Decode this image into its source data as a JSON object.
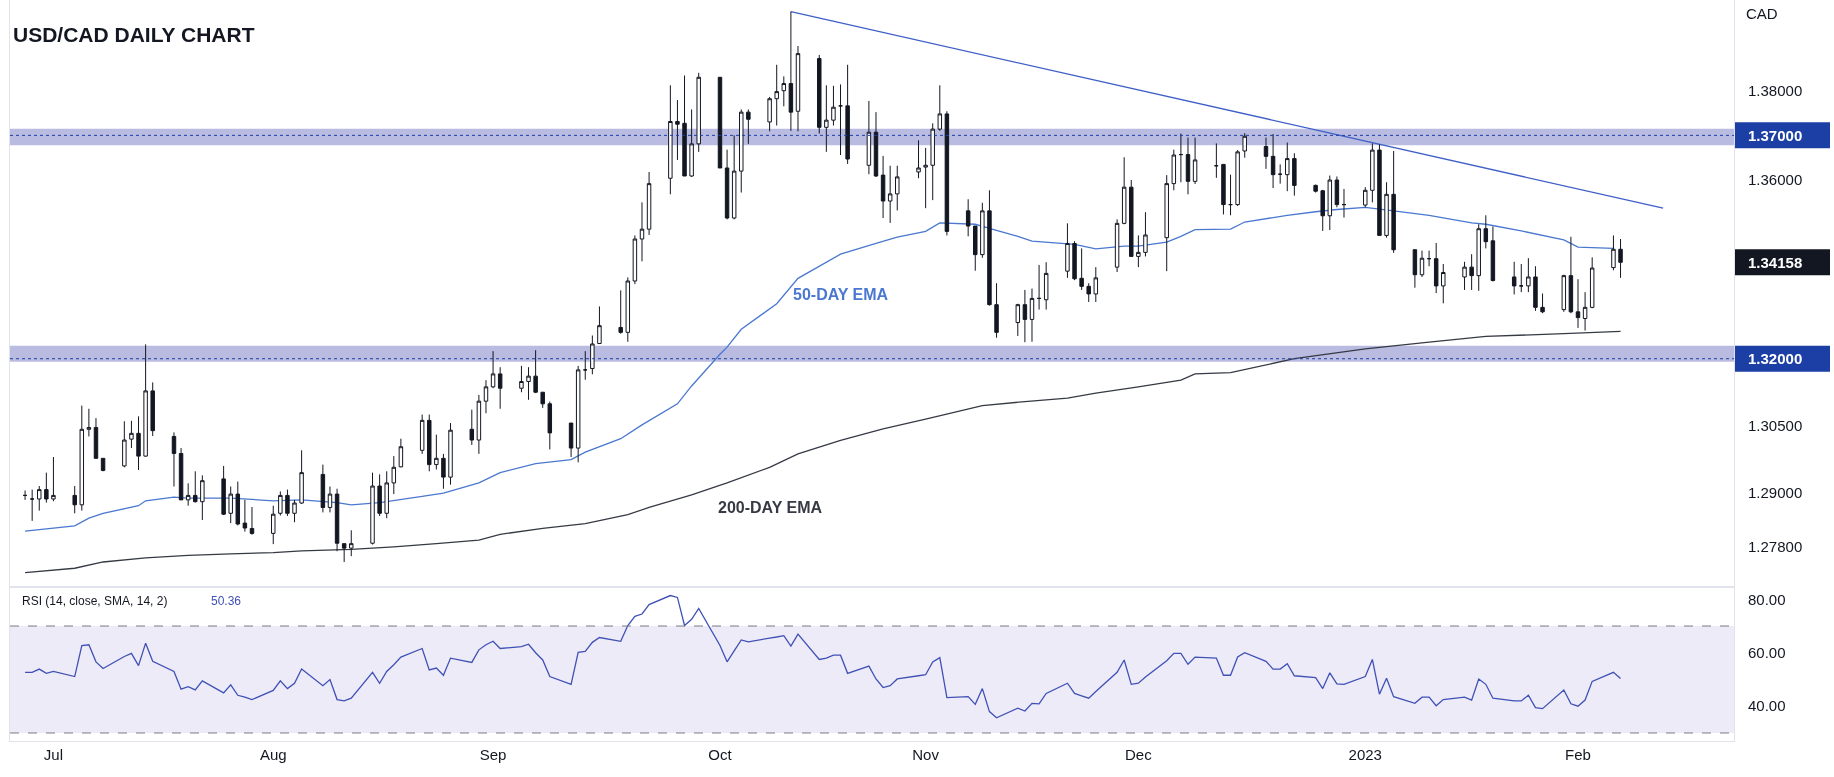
{
  "chart_data": [
    {
      "type": "candlestick",
      "title": "USD/CAD DAILY CHART",
      "ylabel": "CAD",
      "x": [
        "2022-06-27",
        "2022-06-28",
        "2022-06-29",
        "2022-06-30",
        "2022-07-01",
        "2022-07-04",
        "2022-07-05",
        "2022-07-06",
        "2022-07-07",
        "2022-07-08",
        "2022-07-11",
        "2022-07-12",
        "2022-07-13",
        "2022-07-14",
        "2022-07-15",
        "2022-07-18",
        "2022-07-19",
        "2022-07-20",
        "2022-07-21",
        "2022-07-22",
        "2022-07-25",
        "2022-07-26",
        "2022-07-27",
        "2022-07-28",
        "2022-07-29",
        "2022-08-01",
        "2022-08-02",
        "2022-08-03",
        "2022-08-04",
        "2022-08-05",
        "2022-08-08",
        "2022-08-09",
        "2022-08-10",
        "2022-08-11",
        "2022-08-12",
        "2022-08-15",
        "2022-08-16",
        "2022-08-17",
        "2022-08-18",
        "2022-08-19",
        "2022-08-22",
        "2022-08-23",
        "2022-08-24",
        "2022-08-25",
        "2022-08-26",
        "2022-08-29",
        "2022-08-30",
        "2022-08-31",
        "2022-09-01",
        "2022-09-02",
        "2022-09-05",
        "2022-09-06",
        "2022-09-07",
        "2022-09-08",
        "2022-09-09",
        "2022-09-12",
        "2022-09-13",
        "2022-09-14",
        "2022-09-15",
        "2022-09-16",
        "2022-09-19",
        "2022-09-20",
        "2022-09-21",
        "2022-09-22",
        "2022-09-23",
        "2022-09-26",
        "2022-09-27",
        "2022-09-28",
        "2022-09-29",
        "2022-09-30",
        "2022-10-03",
        "2022-10-04",
        "2022-10-05",
        "2022-10-06",
        "2022-10-07",
        "2022-10-10",
        "2022-10-11",
        "2022-10-12",
        "2022-10-13",
        "2022-10-14",
        "2022-10-17",
        "2022-10-18",
        "2022-10-19",
        "2022-10-20",
        "2022-10-21",
        "2022-10-24",
        "2022-10-25",
        "2022-10-26",
        "2022-10-27",
        "2022-10-28",
        "2022-10-31",
        "2022-11-01",
        "2022-11-02",
        "2022-11-03",
        "2022-11-04",
        "2022-11-07",
        "2022-11-08",
        "2022-11-09",
        "2022-11-10",
        "2022-11-11",
        "2022-11-14",
        "2022-11-15",
        "2022-11-16",
        "2022-11-17",
        "2022-11-18",
        "2022-11-21",
        "2022-11-22",
        "2022-11-23",
        "2022-11-24",
        "2022-11-25",
        "2022-11-28",
        "2022-11-29",
        "2022-11-30",
        "2022-12-01",
        "2022-12-02",
        "2022-12-05",
        "2022-12-06",
        "2022-12-07",
        "2022-12-08",
        "2022-12-09",
        "2022-12-12",
        "2022-12-13",
        "2022-12-14",
        "2022-12-15",
        "2022-12-16",
        "2022-12-19",
        "2022-12-20",
        "2022-12-21",
        "2022-12-22",
        "2022-12-23",
        "2022-12-26",
        "2022-12-27",
        "2022-12-28",
        "2022-12-29",
        "2022-12-30",
        "2023-01-02",
        "2023-01-03",
        "2023-01-04",
        "2023-01-05",
        "2023-01-06",
        "2023-01-09",
        "2023-01-10",
        "2023-01-11",
        "2023-01-12",
        "2023-01-13",
        "2023-01-16",
        "2023-01-17",
        "2023-01-18",
        "2023-01-19",
        "2023-01-20",
        "2023-01-23",
        "2023-01-24",
        "2023-01-25",
        "2023-01-26",
        "2023-01-27",
        "2023-01-30",
        "2023-01-31",
        "2023-02-01",
        "2023-02-02",
        "2023-02-03",
        "2023-02-06",
        "2023-02-07"
      ],
      "ohlc": [
        [
          1.2894,
          1.2905,
          1.2884,
          1.2894
        ],
        [
          1.2886,
          1.2907,
          1.2837,
          1.2886
        ],
        [
          1.2886,
          1.2915,
          1.286,
          1.2907
        ],
        [
          1.2907,
          1.2945,
          1.2878,
          1.2886
        ],
        [
          1.2886,
          1.298,
          1.2881,
          1.2894
        ],
        [
          1.2894,
          1.2915,
          1.2854,
          1.2873
        ],
        [
          1.2873,
          1.3095,
          1.286,
          1.3042
        ],
        [
          1.3042,
          1.3088,
          1.3026,
          1.3046
        ],
        [
          1.3046,
          1.3067,
          1.2977,
          1.2977
        ],
        [
          1.2977,
          1.2977,
          1.2948,
          1.295
        ],
        [
          1.296,
          1.306,
          1.2957,
          1.3018
        ],
        [
          1.302,
          1.3061,
          1.3,
          1.3033
        ],
        [
          1.3033,
          1.3071,
          1.2951,
          1.2982
        ],
        [
          1.2982,
          1.3232,
          1.2981,
          1.3128
        ],
        [
          1.3128,
          1.3147,
          1.3027,
          1.3039
        ],
        [
          1.3026,
          1.3035,
          1.2914,
          1.2988
        ],
        [
          1.2988,
          1.3,
          1.2884,
          1.2884
        ],
        [
          1.2884,
          1.2921,
          1.2871,
          1.2894
        ],
        [
          1.2894,
          1.2948,
          1.2878,
          1.288
        ],
        [
          1.288,
          1.2939,
          1.2839,
          1.2927
        ],
        [
          1.2931,
          1.296,
          1.285,
          1.2852
        ],
        [
          1.2854,
          1.2914,
          1.2832,
          1.2897
        ],
        [
          1.2897,
          1.2925,
          1.2827,
          1.283
        ],
        [
          1.2832,
          1.2884,
          1.2813,
          1.2821
        ],
        [
          1.282,
          1.2868,
          1.2806,
          1.2809
        ],
        [
          1.2809,
          1.2871,
          1.2785,
          1.2852
        ],
        [
          1.2854,
          1.2903,
          1.2849,
          1.2894
        ],
        [
          1.2894,
          1.2907,
          1.2848,
          1.2854
        ],
        [
          1.2854,
          1.2884,
          1.2834,
          1.2877
        ],
        [
          1.2877,
          1.2995,
          1.2875,
          1.2945
        ],
        [
          1.2941,
          1.2963,
          1.2856,
          1.2867
        ],
        [
          1.2867,
          1.2914,
          1.2856,
          1.2897
        ],
        [
          1.2897,
          1.2909,
          1.2769,
          1.2787
        ],
        [
          1.2786,
          1.2786,
          1.2745,
          1.2776
        ],
        [
          1.2776,
          1.2816,
          1.2758,
          1.2786
        ],
        [
          1.2787,
          1.2945,
          1.2784,
          1.2915
        ],
        [
          1.2915,
          1.2941,
          1.2848,
          1.2854
        ],
        [
          1.2854,
          1.2948,
          1.2843,
          1.2922
        ],
        [
          1.2922,
          1.2982,
          1.2897,
          1.2957
        ],
        [
          1.2958,
          1.3021,
          1.2957,
          1.3003
        ],
        [
          1.2995,
          1.3075,
          1.2987,
          1.3062
        ],
        [
          1.3062,
          1.3075,
          1.2948,
          1.2963
        ],
        [
          1.2963,
          1.303,
          1.2952,
          1.2977
        ],
        [
          1.2977,
          1.2987,
          1.2909,
          1.2935
        ],
        [
          1.2935,
          1.3056,
          1.2918,
          1.304
        ],
        [
          1.3042,
          1.3086,
          1.3007,
          1.3018
        ],
        [
          1.3018,
          1.3119,
          1.2987,
          1.3105
        ],
        [
          1.3105,
          1.3152,
          1.3078,
          1.3137
        ],
        [
          1.3137,
          1.3217,
          1.3134,
          1.3166
        ],
        [
          1.3166,
          1.3181,
          1.3088,
          1.3134
        ],
        [
          1.3134,
          1.3184,
          1.3125,
          1.3149
        ],
        [
          1.3149,
          1.3181,
          1.3108,
          1.3161
        ],
        [
          1.3161,
          1.3219,
          1.3123,
          1.3125
        ],
        [
          1.3125,
          1.3125,
          1.309,
          1.3099
        ],
        [
          1.3099,
          1.3104,
          1.2997,
          1.3034
        ],
        [
          1.3056,
          1.3056,
          1.298,
          1.3
        ],
        [
          1.3,
          1.3184,
          1.2968,
          1.3175
        ],
        [
          1.3175,
          1.3217,
          1.3153,
          1.3175
        ],
        [
          1.3178,
          1.3252,
          1.3165,
          1.3233
        ],
        [
          1.3234,
          1.3317,
          1.3234,
          1.3274
        ],
        [
          1.327,
          1.3353,
          1.3256,
          1.3259
        ],
        [
          1.3259,
          1.3382,
          1.3238,
          1.3374
        ],
        [
          1.3374,
          1.3476,
          1.3367,
          1.3468
        ],
        [
          1.3468,
          1.355,
          1.3418,
          1.349
        ],
        [
          1.349,
          1.3618,
          1.3477,
          1.3592
        ],
        [
          1.3604,
          1.3812,
          1.3568,
          1.3731
        ],
        [
          1.3731,
          1.3779,
          1.3645,
          1.3725
        ],
        [
          1.3727,
          1.3834,
          1.3609,
          1.3609
        ],
        [
          1.3609,
          1.3758,
          1.3607,
          1.3681
        ],
        [
          1.3681,
          1.384,
          1.3663,
          1.383
        ],
        [
          1.383,
          1.383,
          1.3627,
          1.3627
        ],
        [
          1.3627,
          1.3668,
          1.3512,
          1.3515
        ],
        [
          1.3515,
          1.37,
          1.3512,
          1.362
        ],
        [
          1.362,
          1.3758,
          1.3572,
          1.3752
        ],
        [
          1.3752,
          1.3758,
          1.3681,
          1.3736
        ],
        [
          1.373,
          1.3786,
          1.3709,
          1.3782
        ],
        [
          1.3782,
          1.3858,
          1.3722,
          1.3798
        ],
        [
          1.38,
          1.3832,
          1.3765,
          1.3816
        ],
        [
          1.3816,
          1.3977,
          1.371,
          1.3752
        ],
        [
          1.3754,
          1.39,
          1.3709,
          1.3883
        ],
        [
          1.3872,
          1.388,
          1.3704,
          1.3718
        ],
        [
          1.3718,
          1.3812,
          1.3663,
          1.3734
        ],
        [
          1.3734,
          1.3811,
          1.3722,
          1.3763
        ],
        [
          1.3766,
          1.3814,
          1.3656,
          1.3766
        ],
        [
          1.3766,
          1.3858,
          1.3636,
          1.3647
        ],
        [
          1.3633,
          1.3777,
          1.3613,
          1.3707
        ],
        [
          1.3707,
          1.3752,
          1.3607,
          1.3609
        ],
        [
          1.3611,
          1.3654,
          1.3515,
          1.3553
        ],
        [
          1.3553,
          1.3632,
          1.3504,
          1.3569
        ],
        [
          1.3569,
          1.3632,
          1.3532,
          1.3607
        ],
        [
          1.3618,
          1.3689,
          1.3604,
          1.3627
        ],
        [
          1.3629,
          1.3672,
          1.3537,
          1.3633
        ],
        [
          1.3633,
          1.3727,
          1.3555,
          1.3714
        ],
        [
          1.3714,
          1.3812,
          1.371,
          1.3748
        ],
        [
          1.3748,
          1.3754,
          1.3476,
          1.3485
        ],
        [
          1.3531,
          1.3557,
          1.3474,
          1.3497
        ],
        [
          1.3497,
          1.3497,
          1.3397,
          1.3433
        ],
        [
          1.3433,
          1.3549,
          1.3426,
          1.3531
        ],
        [
          1.3531,
          1.3577,
          1.3319,
          1.3321
        ],
        [
          1.3321,
          1.3369,
          1.3247,
          1.3259
        ],
        [
          1.3281,
          1.3323,
          1.3251,
          1.3321
        ],
        [
          1.3321,
          1.3354,
          1.3237,
          1.3288
        ],
        [
          1.3288,
          1.3357,
          1.3238,
          1.3335
        ],
        [
          1.3335,
          1.341,
          1.331,
          1.3335
        ],
        [
          1.3332,
          1.3416,
          1.331,
          1.3391
        ],
        [
          1.3396,
          1.3503,
          1.3381,
          1.3458
        ],
        [
          1.3458,
          1.3463,
          1.3376,
          1.3379
        ],
        [
          1.338,
          1.3447,
          1.3354,
          1.3362
        ],
        [
          1.3362,
          1.3369,
          1.3327,
          1.3345
        ],
        [
          1.3345,
          1.3405,
          1.3327,
          1.3381
        ],
        [
          1.3405,
          1.3512,
          1.3394,
          1.3503
        ],
        [
          1.3503,
          1.3651,
          1.3501,
          1.3584
        ],
        [
          1.3584,
          1.36,
          1.3429,
          1.3429
        ],
        [
          1.3429,
          1.3476,
          1.3405,
          1.3438
        ],
        [
          1.3438,
          1.3528,
          1.3429,
          1.3477
        ],
        [
          1.3471,
          1.3611,
          1.3396,
          1.3592
        ],
        [
          1.3592,
          1.3668,
          1.3577,
          1.3656
        ],
        [
          1.3657,
          1.3704,
          1.3595,
          1.3657
        ],
        [
          1.3657,
          1.3695,
          1.3568,
          1.3597
        ],
        [
          1.3597,
          1.3695,
          1.3591,
          1.3645
        ],
        [
          1.3632,
          1.3682,
          1.3605,
          1.3632
        ],
        [
          1.3635,
          1.3635,
          1.3523,
          1.3545
        ],
        [
          1.3545,
          1.3612,
          1.3521,
          1.3545
        ],
        [
          1.3545,
          1.3667,
          1.3542,
          1.3663
        ],
        [
          1.3665,
          1.3705,
          1.365,
          1.3698
        ],
        [
          1.3675,
          1.3695,
          1.3625,
          1.3653
        ],
        [
          1.3653,
          1.3703,
          1.3582,
          1.3612
        ],
        [
          1.3613,
          1.3635,
          1.3592,
          1.3613
        ],
        [
          1.3612,
          1.3684,
          1.3575,
          1.3648
        ],
        [
          1.3648,
          1.366,
          1.3565,
          1.3588
        ],
        [
          1.3588,
          1.359,
          1.3572,
          1.3575
        ],
        [
          1.3576,
          1.3578,
          1.3486,
          1.352
        ],
        [
          1.352,
          1.361,
          1.3488,
          1.36
        ],
        [
          1.36,
          1.3608,
          1.3539,
          1.3545
        ],
        [
          1.3545,
          1.358,
          1.3516,
          1.3545
        ],
        [
          1.3544,
          1.3584,
          1.3539,
          1.3577
        ],
        [
          1.3577,
          1.3682,
          1.355,
          1.3667
        ],
        [
          1.3667,
          1.368,
          1.3476,
          1.3476
        ],
        [
          1.3476,
          1.3595,
          1.3471,
          1.3568
        ],
        [
          1.3568,
          1.3665,
          1.3437,
          1.3444
        ],
        [
          1.3444,
          1.3444,
          1.3359,
          1.3388
        ],
        [
          1.3388,
          1.3442,
          1.3383,
          1.3425
        ],
        [
          1.3424,
          1.3442,
          1.3407,
          1.3424
        ],
        [
          1.3424,
          1.3459,
          1.3347,
          1.3363
        ],
        [
          1.3363,
          1.3412,
          1.3324,
          1.3393
        ],
        [
          1.3383,
          1.3417,
          1.3354,
          1.3405
        ],
        [
          1.3405,
          1.3434,
          1.3354,
          1.3386
        ],
        [
          1.3386,
          1.3501,
          1.3352,
          1.3491
        ],
        [
          1.3491,
          1.3521,
          1.3447,
          1.3462
        ],
        [
          1.3464,
          1.3496,
          1.3373,
          1.3375
        ],
        [
          1.3383,
          1.3417,
          1.3344,
          1.3363
        ],
        [
          1.3363,
          1.3412,
          1.3349,
          1.3363
        ],
        [
          1.3363,
          1.3425,
          1.3349,
          1.3383
        ],
        [
          1.3383,
          1.3407,
          1.3307,
          1.3315
        ],
        [
          1.3315,
          1.3346,
          1.3302,
          1.3305
        ],
        [
          1.331,
          1.3388,
          1.3305,
          1.3386
        ],
        [
          1.3386,
          1.3473,
          1.3302,
          1.3305
        ],
        [
          1.3305,
          1.3378,
          1.3269,
          1.3292
        ],
        [
          1.329,
          1.3349,
          1.3263,
          1.3315
        ],
        [
          1.3315,
          1.3427,
          1.3313,
          1.3403
        ],
        [
          1.3404,
          1.3476,
          1.3398,
          1.3445
        ],
        [
          1.3445,
          1.3468,
          1.3381,
          1.34158
        ]
      ],
      "series": [
        {
          "type": "line",
          "name": "50-DAY EMA",
          "color": "#4a78d0",
          "x": [
            "2022-06-27",
            "2022-07-04",
            "2022-07-06",
            "2022-07-08",
            "2022-07-13",
            "2022-07-14",
            "2022-07-18",
            "2022-07-20",
            "2022-07-26",
            "2022-08-01",
            "2022-08-05",
            "2022-08-10",
            "2022-08-12",
            "2022-08-16",
            "2022-08-22",
            "2022-08-25",
            "2022-08-30",
            "2022-09-02",
            "2022-09-07",
            "2022-09-12",
            "2022-09-14",
            "2022-09-19",
            "2022-09-22",
            "2022-09-27",
            "2022-09-29",
            "2022-10-03",
            "2022-10-04",
            "2022-10-06",
            "2022-10-11",
            "2022-10-14",
            "2022-10-20",
            "2022-10-25",
            "2022-10-28",
            "2022-11-01",
            "2022-11-03",
            "2022-11-08",
            "2022-11-10",
            "2022-11-14",
            "2022-11-16",
            "2022-11-22",
            "2022-11-25",
            "2022-11-29",
            "2022-12-01",
            "2022-12-05",
            "2022-12-07",
            "2022-12-09",
            "2022-12-14",
            "2022-12-16",
            "2022-12-22",
            "2022-12-26",
            "2022-12-29",
            "2023-01-02",
            "2023-01-06",
            "2023-01-11",
            "2023-01-17",
            "2023-01-19",
            "2023-01-24",
            "2023-01-30",
            "2023-02-01",
            "2023-02-06"
          ],
          "values": [
            1.2814,
            1.2826,
            1.2843,
            1.2854,
            1.2871,
            1.2882,
            1.289,
            1.2888,
            1.2888,
            1.2882,
            1.2884,
            1.2878,
            1.2873,
            1.2878,
            1.2892,
            1.2899,
            1.2922,
            1.2945,
            1.2965,
            1.2974,
            1.2991,
            1.3021,
            1.3052,
            1.3099,
            1.3139,
            1.321,
            1.3226,
            1.3266,
            1.3323,
            1.338,
            1.3434,
            1.3458,
            1.3472,
            1.3485,
            1.3504,
            1.3501,
            1.3492,
            1.3474,
            1.3463,
            1.3456,
            1.3446,
            1.3452,
            1.3452,
            1.3461,
            1.3474,
            1.3489,
            1.349,
            1.3506,
            1.3521,
            1.3529,
            1.3534,
            1.3539,
            1.3531,
            1.3521,
            1.3504,
            1.3501,
            1.3486,
            1.3466,
            1.345,
            1.3447
          ]
        },
        {
          "type": "line",
          "name": "200-DAY EMA",
          "color": "#363a45",
          "x": [
            "2022-06-27",
            "2022-07-04",
            "2022-07-08",
            "2022-07-14",
            "2022-07-20",
            "2022-07-26",
            "2022-08-01",
            "2022-08-05",
            "2022-08-12",
            "2022-08-18",
            "2022-08-24",
            "2022-08-30",
            "2022-09-02",
            "2022-09-08",
            "2022-09-14",
            "2022-09-20",
            "2022-09-23",
            "2022-09-29",
            "2022-10-04",
            "2022-10-10",
            "2022-10-14",
            "2022-10-20",
            "2022-10-26",
            "2022-11-01",
            "2022-11-09",
            "2022-11-15",
            "2022-11-21",
            "2022-11-25",
            "2022-12-01",
            "2022-12-07",
            "2022-12-09",
            "2022-12-14",
            "2022-12-23",
            "2023-01-02",
            "2023-01-11",
            "2023-01-19",
            "2023-01-30",
            "2023-02-07"
          ],
          "values": [
            1.2721,
            1.2731,
            1.2745,
            1.2754,
            1.276,
            1.2763,
            1.2766,
            1.277,
            1.2773,
            1.2779,
            1.2786,
            1.2794,
            1.2807,
            1.282,
            1.2831,
            1.2851,
            1.2867,
            1.2895,
            1.2922,
            1.2957,
            1.2987,
            1.3017,
            1.3043,
            1.3065,
            1.3095,
            1.3104,
            1.3112,
            1.3123,
            1.3137,
            1.3152,
            1.3166,
            1.3169,
            1.32,
            1.3222,
            1.3237,
            1.325,
            1.3256,
            1.3261
          ]
        },
        {
          "type": "line",
          "color": "#3f5fc8",
          "x": [
            "2022-10-13",
            "2023-02-13"
          ],
          "values": [
            1.3977,
            1.3537
          ]
        }
      ],
      "bands": [
        {
          "axis": "y",
          "from": 1.3678,
          "to": 1.3715,
          "color": "#b9bbe0"
        },
        {
          "axis": "y",
          "from": 1.3193,
          "to": 1.3229,
          "color": "#b9bbe0"
        }
      ],
      "ref_lines": [
        {
          "axis": "y",
          "value": 1.37,
          "color": "#1c3fa5",
          "line_style": "dotted"
        },
        {
          "axis": "y",
          "value": 1.32,
          "color": "#1c3fa5",
          "line_style": "dotted"
        }
      ],
      "xlim": [
        "2022-06-24T21:00",
        "2023-02-23"
      ],
      "ylim": [
        1.2689,
        1.4003
      ],
      "yticks": [
        {
          "value": 1.278,
          "label": "1.27800"
        },
        {
          "value": 1.29,
          "label": "1.29000"
        },
        {
          "value": 1.305,
          "label": "1.30500"
        },
        {
          "value": 1.32,
          "label": "1.32000"
        },
        {
          "value": 1.34158,
          "label": "1.34158"
        },
        {
          "value": 1.36,
          "label": "1.36000"
        },
        {
          "value": 1.37,
          "label": "1.37000"
        },
        {
          "value": 1.38,
          "label": "1.38000"
        }
      ],
      "tick_labels": "y",
      "grid": false,
      "legend": false
    },
    {
      "type": "line",
      "title": "RSI (14, close, SMA, 14, 2)",
      "annotations": [
        "50.36"
      ],
      "x": [
        "2022-06-27",
        "2022-06-28",
        "2022-06-29",
        "2022-06-30",
        "2022-07-01",
        "2022-07-04",
        "2022-07-05",
        "2022-07-06",
        "2022-07-07",
        "2022-07-08",
        "2022-07-11",
        "2022-07-12",
        "2022-07-13",
        "2022-07-14",
        "2022-07-15",
        "2022-07-18",
        "2022-07-19",
        "2022-07-20",
        "2022-07-21",
        "2022-07-22",
        "2022-07-25",
        "2022-07-26",
        "2022-07-27",
        "2022-07-28",
        "2022-07-29",
        "2022-08-01",
        "2022-08-02",
        "2022-08-03",
        "2022-08-04",
        "2022-08-05",
        "2022-08-08",
        "2022-08-09",
        "2022-08-10",
        "2022-08-11",
        "2022-08-12",
        "2022-08-15",
        "2022-08-16",
        "2022-08-17",
        "2022-08-18",
        "2022-08-19",
        "2022-08-22",
        "2022-08-23",
        "2022-08-24",
        "2022-08-25",
        "2022-08-26",
        "2022-08-29",
        "2022-08-30",
        "2022-08-31",
        "2022-09-01",
        "2022-09-02",
        "2022-09-05",
        "2022-09-06",
        "2022-09-07",
        "2022-09-08",
        "2022-09-09",
        "2022-09-12",
        "2022-09-13",
        "2022-09-14",
        "2022-09-15",
        "2022-09-16",
        "2022-09-19",
        "2022-09-20",
        "2022-09-21",
        "2022-09-22",
        "2022-09-23",
        "2022-09-26",
        "2022-09-27",
        "2022-09-28",
        "2022-09-29",
        "2022-09-30",
        "2022-10-03",
        "2022-10-04",
        "2022-10-05",
        "2022-10-06",
        "2022-10-07",
        "2022-10-10",
        "2022-10-11",
        "2022-10-12",
        "2022-10-13",
        "2022-10-14",
        "2022-10-17",
        "2022-10-18",
        "2022-10-19",
        "2022-10-20",
        "2022-10-21",
        "2022-10-24",
        "2022-10-25",
        "2022-10-26",
        "2022-10-27",
        "2022-10-28",
        "2022-10-31",
        "2022-11-01",
        "2022-11-02",
        "2022-11-03",
        "2022-11-04",
        "2022-11-07",
        "2022-11-08",
        "2022-11-09",
        "2022-11-10",
        "2022-11-11",
        "2022-11-14",
        "2022-11-15",
        "2022-11-16",
        "2022-11-17",
        "2022-11-18",
        "2022-11-21",
        "2022-11-22",
        "2022-11-23",
        "2022-11-24",
        "2022-11-25",
        "2022-11-28",
        "2022-11-29",
        "2022-11-30",
        "2022-12-01",
        "2022-12-02",
        "2022-12-05",
        "2022-12-06",
        "2022-12-07",
        "2022-12-08",
        "2022-12-09",
        "2022-12-12",
        "2022-12-13",
        "2022-12-14",
        "2022-12-15",
        "2022-12-16",
        "2022-12-19",
        "2022-12-20",
        "2022-12-21",
        "2022-12-22",
        "2022-12-23",
        "2022-12-26",
        "2022-12-27",
        "2022-12-28",
        "2022-12-29",
        "2022-12-30",
        "2023-01-02",
        "2023-01-03",
        "2023-01-04",
        "2023-01-05",
        "2023-01-06",
        "2023-01-09",
        "2023-01-10",
        "2023-01-11",
        "2023-01-12",
        "2023-01-13",
        "2023-01-16",
        "2023-01-17",
        "2023-01-18",
        "2023-01-19",
        "2023-01-20",
        "2023-01-23",
        "2023-01-24",
        "2023-01-25",
        "2023-01-26",
        "2023-01-27",
        "2023-01-30",
        "2023-01-31",
        "2023-02-01",
        "2023-02-02",
        "2023-02-03",
        "2023-02-06",
        "2023-02-07"
      ],
      "series": [
        {
          "color": "#3f51b5",
          "values": [
            52.7,
            52.7,
            53.9,
            52.3,
            53.0,
            51.1,
            62.7,
            63.0,
            56.6,
            54.1,
            58.6,
            59.8,
            55.2,
            63.6,
            56.8,
            53.0,
            46.4,
            47.3,
            46.1,
            49.5,
            45.0,
            48.0,
            44.1,
            43.4,
            42.5,
            45.9,
            49.5,
            46.6,
            48.6,
            53.9,
            47.7,
            50.0,
            42.5,
            42.0,
            43.0,
            52.7,
            48.6,
            53.0,
            55.5,
            58.4,
            61.6,
            53.6,
            54.3,
            51.6,
            58.0,
            56.4,
            61.1,
            63.0,
            64.3,
            61.6,
            62.3,
            63.2,
            60.0,
            57.3,
            51.1,
            48.2,
            60.2,
            60.5,
            63.9,
            65.7,
            64.3,
            70.2,
            73.6,
            74.5,
            78.0,
            81.4,
            80.7,
            70.2,
            72.5,
            76.6,
            62.7,
            56.6,
            60.7,
            64.8,
            64.1,
            65.5,
            65.9,
            66.4,
            62.5,
            67.0,
            57.5,
            58.0,
            59.1,
            59.1,
            52.3,
            55.0,
            50.2,
            47.0,
            47.7,
            50.2,
            51.4,
            51.8,
            56.6,
            58.2,
            43.2,
            43.6,
            40.7,
            46.6,
            38.0,
            35.7,
            39.3,
            38.2,
            41.1,
            40.9,
            44.8,
            48.6,
            44.8,
            43.9,
            43.0,
            45.5,
            52.7,
            57.3,
            48.2,
            48.6,
            50.9,
            57.0,
            59.8,
            59.8,
            55.7,
            58.4,
            58.0,
            51.6,
            51.6,
            58.4,
            60.0,
            56.8,
            53.9,
            53.9,
            55.9,
            51.4,
            50.7,
            46.6,
            52.5,
            48.4,
            48.2,
            51.1,
            57.5,
            44.5,
            50.5,
            43.6,
            41.1,
            43.4,
            43.4,
            40.2,
            42.5,
            43.4,
            42.3,
            50.2,
            48.2,
            43.0,
            42.0,
            42.0,
            44.1,
            39.5,
            39.1,
            46.1,
            40.9,
            40.0,
            42.3,
            49.3,
            52.7,
            50.4
          ]
        }
      ],
      "bands": [
        {
          "axis": "y",
          "from": 30,
          "to": 70,
          "color": "#eeebf8"
        }
      ],
      "ref_lines": [
        {
          "axis": "y",
          "value": 70,
          "color": "#787b86",
          "line_style": "dashed"
        },
        {
          "axis": "y",
          "value": 30,
          "color": "#787b86",
          "line_style": "dashed"
        }
      ],
      "xlim": [
        "2022-06-24T21:00",
        "2023-02-23"
      ],
      "xticks": [
        {
          "value": "2022-07-01",
          "label": "Jul"
        },
        {
          "value": "2022-08-01",
          "label": "Aug"
        },
        {
          "value": "2022-09-01",
          "label": "Sep"
        },
        {
          "value": "2022-10-03",
          "label": "Oct"
        },
        {
          "value": "2022-11-01",
          "label": "Nov"
        },
        {
          "value": "2022-12-01",
          "label": "Dec"
        },
        {
          "value": "2023-01-02",
          "label": "2023"
        },
        {
          "value": "2023-02-01",
          "label": "Feb"
        }
      ],
      "ylim": [
        27,
        84.6
      ],
      "yticks": [
        {
          "value": 40,
          "label": "40.00"
        },
        {
          "value": 60,
          "label": "60.00"
        },
        {
          "value": 80,
          "label": "80.00"
        }
      ],
      "grid": false,
      "legend": false
    }
  ]
}
